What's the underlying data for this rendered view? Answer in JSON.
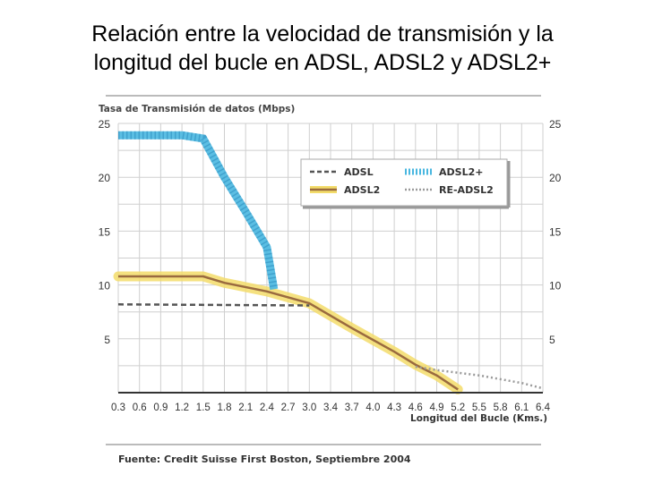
{
  "slide": {
    "title_line1": "Relación entre la velocidad de transmisión y la",
    "title_line2": "longitud del bucle en ADSL, ADSL2 y ADSL2+"
  },
  "chart_data": {
    "type": "line",
    "ylabel": "Tasa de Transmisión de datos (Mbps)",
    "xlabel": "Longitud del Bucle (Kms.)",
    "source": "Fuente: Credit Suisse First Boston, Septiembre 2004",
    "ylim": [
      0,
      25
    ],
    "xlim": [
      0.3,
      6.4
    ],
    "yticks": [
      5,
      10,
      15,
      20,
      25
    ],
    "xticks": [
      "0.3",
      "0.6",
      "0.9",
      "1.2",
      "1.5",
      "1.8",
      "2.1",
      "2.4",
      "2.7",
      "3.0",
      "3.4",
      "3.7",
      "4.0",
      "4.3",
      "4.6",
      "4.9",
      "5.2",
      "5.5",
      "5.8",
      "6.1",
      "6.4"
    ],
    "grid": true,
    "legend_position": "top-right",
    "series": [
      {
        "name": "ADSL",
        "color": "#555555",
        "style": "dashed",
        "points": [
          [
            0.3,
            8.2
          ],
          [
            3.0,
            8.1
          ],
          [
            3.4,
            6.8
          ],
          [
            4.0,
            4.7
          ],
          [
            4.6,
            2.6
          ],
          [
            5.5,
            1.8
          ],
          [
            6.4,
            0.2
          ]
        ]
      },
      {
        "name": "ADSL2+",
        "color": "#49b7e0",
        "style": "thick-dotted",
        "points": [
          [
            0.3,
            23.9
          ],
          [
            1.2,
            23.9
          ],
          [
            1.5,
            23.6
          ],
          [
            1.8,
            20.0
          ],
          [
            2.1,
            16.8
          ],
          [
            2.4,
            13.5
          ],
          [
            2.5,
            9.6
          ]
        ]
      },
      {
        "name": "ADSL2",
        "color": "#9a6a3f",
        "highlight": "#f3dc6a",
        "style": "solid",
        "points": [
          [
            0.3,
            10.8
          ],
          [
            1.5,
            10.8
          ],
          [
            1.8,
            10.2
          ],
          [
            2.4,
            9.4
          ],
          [
            3.0,
            8.3
          ],
          [
            3.7,
            6.0
          ],
          [
            4.3,
            3.8
          ],
          [
            4.6,
            2.6
          ],
          [
            4.9,
            1.6
          ],
          [
            5.2,
            0.3
          ]
        ]
      },
      {
        "name": "RE-ADSL2",
        "color": "#9a9a9a",
        "style": "dotted",
        "points": [
          [
            4.6,
            2.4
          ],
          [
            4.9,
            2.1
          ],
          [
            5.5,
            1.6
          ],
          [
            6.1,
            0.9
          ],
          [
            6.4,
            0.4
          ]
        ]
      }
    ]
  }
}
